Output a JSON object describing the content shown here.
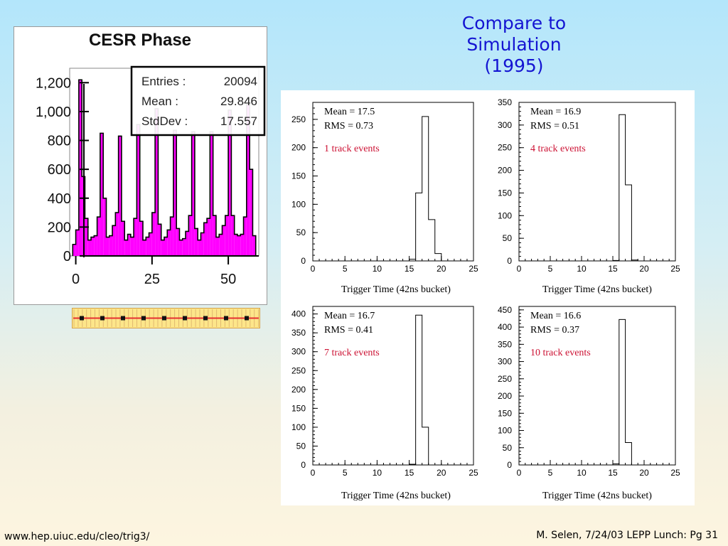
{
  "slide": {
    "title_lines": [
      "Compare to",
      "Simulation",
      "(1995)"
    ],
    "footer_left": "www.hep.uiuc.edu/cleo/trig3/",
    "footer_right": "M. Selen, 7/24/03 LEPP Lunch: Pg 31",
    "icons": [
      "timing-strip-icon"
    ]
  },
  "chart_data": [
    {
      "type": "bar",
      "title": "CESR Phase",
      "stats": [
        {
          "label": "Entries :",
          "value": "20094"
        },
        {
          "label": "Mean :",
          "value": "29.846"
        },
        {
          "label": "StdDev :",
          "value": "17.557"
        }
      ],
      "xlim": [
        -2,
        60
      ],
      "ylim": [
        0,
        1300
      ],
      "xticks": [
        "0",
        "25",
        "50"
      ],
      "yticks": [
        "0",
        "200",
        "400",
        "600",
        "800",
        "1,000",
        "1,200"
      ],
      "bar_color": "#ff00ff",
      "x": [
        -0.5,
        0.5,
        1.5,
        2.5,
        3.5,
        4.5,
        5.5,
        6.5,
        7.5,
        8.5,
        9.5,
        10.5,
        11.5,
        12.5,
        13.5,
        14.5,
        15.5,
        16.5,
        17.5,
        18.5,
        19.5,
        20.5,
        21.5,
        22.5,
        23.5,
        24.5,
        25.5,
        26.5,
        27.5,
        28.5,
        29.5,
        30.5,
        31.5,
        32.5,
        33.5,
        34.5,
        35.5,
        36.5,
        37.5,
        38.5,
        39.5,
        40.5,
        41.5,
        42.5,
        43.5,
        44.5,
        45.5,
        46.5,
        47.5,
        48.5,
        49.5,
        50.5,
        51.5,
        52.5,
        53.5,
        54.5,
        55.5,
        56.5,
        57.5,
        58.5
      ],
      "values": [
        80,
        180,
        1220,
        550,
        260,
        110,
        130,
        140,
        270,
        850,
        400,
        130,
        140,
        210,
        300,
        830,
        240,
        110,
        150,
        130,
        260,
        910,
        240,
        110,
        130,
        160,
        300,
        1020,
        220,
        110,
        130,
        180,
        270,
        870,
        190,
        110,
        120,
        170,
        280,
        860,
        190,
        110,
        160,
        230,
        260,
        860,
        280,
        130,
        150,
        210,
        280,
        1010,
        280,
        150,
        140,
        150,
        270,
        1050,
        600,
        140
      ]
    },
    {
      "type": "bar",
      "stats_lines": [
        "Mean = 17.5",
        "RMS  = 0.73"
      ],
      "label": "1 track events",
      "xlabel": "Trigger Time (42ns bucket)",
      "xlim": [
        0,
        25
      ],
      "ylim": [
        0,
        280
      ],
      "xticks": [
        "0",
        "5",
        "10",
        "15",
        "20",
        "25"
      ],
      "yticks": [
        "0",
        "50",
        "100",
        "150",
        "200",
        "250"
      ],
      "x": [
        15.5,
        16.5,
        17.5,
        18.5,
        19.5
      ],
      "values": [
        3,
        120,
        255,
        73,
        13
      ]
    },
    {
      "type": "bar",
      "stats_lines": [
        "Mean = 16.9",
        "RMS  = 0.51"
      ],
      "label": "4 track events",
      "xlabel": "Trigger Time (42ns bucket)",
      "xlim": [
        0,
        25
      ],
      "ylim": [
        0,
        350
      ],
      "xticks": [
        "0",
        "5",
        "10",
        "15",
        "20",
        "25"
      ],
      "yticks": [
        "0",
        "50",
        "100",
        "150",
        "200",
        "250",
        "300",
        "350"
      ],
      "x": [
        15.5,
        16.5,
        17.5,
        18.5
      ],
      "values": [
        1,
        323,
        168,
        2
      ]
    },
    {
      "type": "bar",
      "stats_lines": [
        "Mean = 16.7",
        "RMS  = 0.41"
      ],
      "label": "7 track events",
      "xlabel": "Trigger Time (42ns bucket)",
      "xlim": [
        0,
        25
      ],
      "ylim": [
        0,
        420
      ],
      "xticks": [
        "0",
        "5",
        "10",
        "15",
        "20",
        "25"
      ],
      "yticks": [
        "0",
        "50",
        "100",
        "150",
        "200",
        "250",
        "300",
        "350",
        "400"
      ],
      "x": [
        15.5,
        16.5,
        17.5
      ],
      "values": [
        2,
        397,
        100
      ]
    },
    {
      "type": "bar",
      "stats_lines": [
        "Mean = 16.6",
        "RMS  = 0.37"
      ],
      "label": "10 track events",
      "xlabel": "Trigger Time (42ns bucket)",
      "xlim": [
        0,
        25
      ],
      "ylim": [
        0,
        460
      ],
      "xticks": [
        "0",
        "5",
        "10",
        "15",
        "20",
        "25"
      ],
      "yticks": [
        "0",
        "50",
        "100",
        "150",
        "200",
        "250",
        "300",
        "350",
        "400",
        "450"
      ],
      "x": [
        15.5,
        16.5,
        17.5
      ],
      "values": [
        3,
        422,
        65
      ]
    }
  ]
}
